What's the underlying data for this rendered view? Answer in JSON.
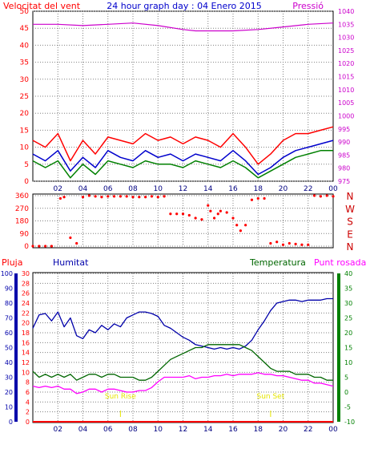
{
  "chart_data": [
    {
      "type": "line",
      "title": "24 hour graph day : 04 Enero 2015",
      "left_label": "Velocitat del vent",
      "right_label": "Pressió",
      "x_ticks": [
        "02",
        "04",
        "06",
        "08",
        "10",
        "12",
        "14",
        "16",
        "18",
        "20",
        "22",
        "00"
      ],
      "ylim_left": [
        0,
        50
      ],
      "yticks_left": [
        "0",
        "5",
        "10",
        "15",
        "20",
        "25",
        "30",
        "35",
        "40",
        "45",
        "50"
      ],
      "ylim_right": [
        975,
        1040
      ],
      "yticks_right": [
        "975",
        "980",
        "985",
        "990",
        "995",
        "1000",
        "1005",
        "1010",
        "1015",
        "1020",
        "1025",
        "1030",
        "1035",
        "1040"
      ],
      "series": [
        {
          "key": "gust",
          "axis": "left",
          "color": "#ff0000",
          "x": [
            0,
            1,
            2,
            3,
            4,
            5,
            6,
            7,
            8,
            9,
            10,
            11,
            12,
            13,
            14,
            15,
            16,
            17,
            18,
            19,
            20,
            21,
            22,
            23,
            24
          ],
          "values": [
            12,
            10,
            14,
            6,
            12,
            8,
            13,
            12,
            11,
            14,
            12,
            13,
            11,
            13,
            12,
            10,
            14,
            10,
            5,
            8,
            12,
            14,
            14,
            15,
            16
          ]
        },
        {
          "key": "speed",
          "axis": "left",
          "color": "#0000cc",
          "x": [
            0,
            1,
            2,
            3,
            4,
            5,
            6,
            7,
            8,
            9,
            10,
            11,
            12,
            13,
            14,
            15,
            16,
            17,
            18,
            19,
            20,
            21,
            22,
            23,
            24
          ],
          "values": [
            8,
            6,
            9,
            3,
            7,
            4,
            9,
            7,
            6,
            9,
            7,
            8,
            6,
            8,
            7,
            6,
            9,
            6,
            2,
            4,
            7,
            9,
            10,
            11,
            12
          ]
        },
        {
          "key": "avg",
          "axis": "left",
          "color": "#008000",
          "x": [
            0,
            1,
            2,
            3,
            4,
            5,
            6,
            7,
            8,
            9,
            10,
            11,
            12,
            13,
            14,
            15,
            16,
            17,
            18,
            19,
            20,
            21,
            22,
            23,
            24
          ],
          "values": [
            6,
            4,
            6,
            1,
            5,
            2,
            6,
            5,
            4,
            6,
            5,
            5,
            4,
            6,
            5,
            4,
            6,
            4,
            1,
            3,
            5,
            7,
            8,
            9,
            9
          ]
        },
        {
          "key": "pressure",
          "axis": "right",
          "color": "#cc00cc",
          "x": [
            0,
            2,
            4,
            6,
            8,
            10,
            12,
            13,
            14,
            16,
            18,
            20,
            22,
            24
          ],
          "values": [
            1035,
            1035,
            1034.5,
            1035,
            1035.5,
            1034.5,
            1033,
            1032.5,
            1032.5,
            1032.5,
            1033,
            1034,
            1035,
            1035.5
          ]
        }
      ]
    },
    {
      "type": "scatter",
      "right_labels": [
        "N",
        "W",
        "S",
        "E",
        "N"
      ],
      "ylim": [
        0,
        360
      ],
      "yticks": [
        "0",
        "90",
        "180",
        "270",
        "360"
      ],
      "series": [
        {
          "key": "direction",
          "color": "#ff0000",
          "x": [
            0,
            0.5,
            1,
            1.5,
            2.2,
            2.5,
            3,
            3.5,
            4,
            4.5,
            5,
            5.5,
            6,
            6.5,
            7,
            7.5,
            8,
            8.5,
            9,
            9.5,
            10,
            10.5,
            11,
            11.5,
            12,
            12.5,
            13,
            13.5,
            14,
            14.2,
            14.5,
            14.8,
            15,
            15.5,
            16,
            16.3,
            16.6,
            17,
            17.5,
            18,
            18.5,
            19,
            19.5,
            20,
            20.5,
            21,
            21.5,
            22,
            22.5,
            23,
            23.5,
            24
          ],
          "values": [
            0,
            0,
            0,
            0,
            340,
            350,
            60,
            20,
            350,
            360,
            355,
            350,
            355,
            355,
            355,
            355,
            350,
            350,
            350,
            355,
            350,
            355,
            230,
            230,
            230,
            220,
            200,
            190,
            290,
            250,
            200,
            230,
            250,
            240,
            200,
            150,
            110,
            150,
            330,
            340,
            340,
            20,
            30,
            10,
            20,
            15,
            10,
            10,
            360,
            355,
            360,
            355
          ]
        }
      ]
    },
    {
      "type": "line",
      "left_label_1": "Pluja",
      "left_label_2": "Humitat",
      "right_label_1": "Temperatura",
      "right_label_2": "Punt rosada",
      "ylim_rain": [
        0,
        30
      ],
      "yticks_rain": [
        "0",
        "2",
        "4",
        "6",
        "8",
        "10",
        "12",
        "14",
        "16",
        "18",
        "20",
        "22",
        "24",
        "26",
        "28",
        "30"
      ],
      "ylim_humidity": [
        0,
        100
      ],
      "yticks_humidity": [
        "0",
        "10",
        "20",
        "30",
        "40",
        "50",
        "60",
        "70",
        "80",
        "90",
        "100"
      ],
      "ylim_temp": [
        -10,
        40
      ],
      "yticks_temp": [
        "-10",
        "-5",
        "0",
        "5",
        "10",
        "15",
        "20",
        "25",
        "30",
        "35",
        "40"
      ],
      "annotations": [
        "Sun Rise",
        "Sun Set"
      ],
      "sun_rise_hour": 7.0,
      "sun_set_hour": 19.0,
      "series": [
        {
          "key": "humidity",
          "axis": "humidity",
          "color": "#0000aa",
          "x": [
            0,
            0.5,
            1,
            1.5,
            2,
            2.5,
            3,
            3.5,
            4,
            4.5,
            5,
            5.5,
            6,
            6.5,
            7,
            7.5,
            8,
            8.5,
            9,
            9.5,
            10,
            10.5,
            11,
            11.5,
            12,
            12.5,
            13,
            13.5,
            14,
            14.5,
            15,
            15.5,
            16,
            16.5,
            17,
            17.5,
            18,
            18.5,
            19,
            19.5,
            20,
            20.5,
            21,
            21.5,
            22,
            22.5,
            23,
            23.5,
            24
          ],
          "values": [
            63,
            72,
            73,
            68,
            74,
            64,
            70,
            58,
            56,
            62,
            60,
            65,
            62,
            66,
            64,
            70,
            72,
            74,
            74,
            73,
            71,
            65,
            63,
            60,
            57,
            55,
            52,
            51,
            50,
            49,
            50,
            49,
            50,
            49,
            51,
            55,
            62,
            68,
            75,
            80,
            81,
            82,
            82,
            81,
            82,
            82,
            82,
            83,
            83
          ]
        },
        {
          "key": "temperature",
          "axis": "temp",
          "color": "#006600",
          "x": [
            0,
            0.5,
            1,
            1.5,
            2,
            2.5,
            3,
            3.5,
            4,
            4.5,
            5,
            5.5,
            6,
            6.5,
            7,
            7.5,
            8,
            8.5,
            9,
            9.5,
            10,
            10.5,
            11,
            11.5,
            12,
            12.5,
            13,
            13.5,
            14,
            14.5,
            15,
            15.5,
            16,
            16.5,
            17,
            17.5,
            18,
            18.5,
            19,
            19.5,
            20,
            20.5,
            21,
            21.5,
            22,
            22.5,
            23,
            23.5,
            24
          ],
          "values": [
            7,
            5,
            6,
            5,
            6,
            5,
            6,
            4,
            5,
            6,
            6,
            5,
            6,
            6,
            5,
            5,
            5,
            4,
            4,
            5,
            7,
            9,
            11,
            12,
            13,
            14,
            15,
            15,
            16,
            16,
            16,
            16,
            16,
            16,
            15,
            14,
            12,
            10,
            8,
            7,
            7,
            7,
            6,
            6,
            6,
            5,
            5,
            4,
            4
          ]
        },
        {
          "key": "dew_point",
          "axis": "temp",
          "color": "#ff00ff",
          "x": [
            0,
            0.5,
            1,
            1.5,
            2,
            2.5,
            3,
            3.5,
            4,
            4.5,
            5,
            5.5,
            6,
            6.5,
            7,
            7.5,
            8,
            8.5,
            9,
            9.5,
            10,
            10.5,
            11,
            11.5,
            12,
            12.5,
            13,
            13.5,
            14,
            14.5,
            15,
            15.5,
            16,
            16.5,
            17,
            17.5,
            18,
            18.5,
            19,
            19.5,
            20,
            20.5,
            21,
            21.5,
            22,
            22.5,
            23,
            23.5,
            24
          ],
          "values": [
            2,
            1.5,
            2,
            1.5,
            2,
            1,
            1,
            -0.5,
            0,
            1,
            1,
            0,
            1,
            1,
            0.5,
            0,
            0,
            0.5,
            0.5,
            1.5,
            3.5,
            5,
            5,
            5,
            5,
            5.5,
            4.5,
            5,
            5,
            5.5,
            5.5,
            6,
            5.5,
            6,
            6,
            6,
            6.5,
            6,
            6,
            5.5,
            5.5,
            5,
            4.5,
            4,
            4,
            3,
            3,
            2.5,
            2
          ]
        },
        {
          "key": "rain",
          "axis": "rain",
          "color": "#ff0000",
          "x": [
            0,
            24
          ],
          "values": [
            0,
            0
          ]
        }
      ]
    }
  ]
}
